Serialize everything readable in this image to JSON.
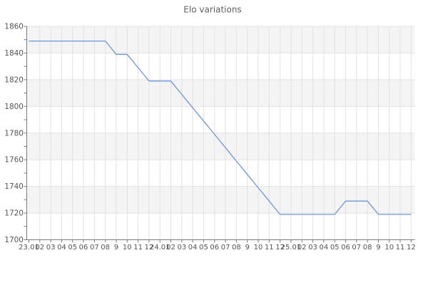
{
  "chart_data": {
    "type": "line",
    "title": "Elo variations",
    "legend": "none",
    "grid": "on",
    "ylim": [
      1700,
      1860
    ],
    "y_major_step": 20,
    "y_minor_step": 10,
    "y_tick_labels": [
      "1860",
      "1840",
      "1820",
      "1800",
      "1780",
      "1760",
      "1740",
      "1720",
      "1700"
    ],
    "x_tick_labels": [
      "23.01",
      "02",
      "03",
      "04",
      "05",
      "06",
      "07",
      "08",
      "9",
      "10",
      "11",
      "12",
      "24.01",
      "02",
      "03",
      "04",
      "05",
      "06",
      "07",
      "08",
      "9",
      "10",
      "11",
      "12",
      "25.01",
      "02",
      "03",
      "04",
      "05",
      "06",
      "07",
      "08",
      "9",
      "10",
      "11",
      "12"
    ],
    "series": [
      {
        "name": "Elo",
        "values": [
          1849,
          1849,
          1849,
          1849,
          1849,
          1849,
          1849,
          1849,
          1839,
          1839,
          1829,
          1819,
          1819,
          1819,
          1809,
          1799,
          1789,
          1779,
          1769,
          1759,
          1749,
          1739,
          1729,
          1719,
          1719,
          1719,
          1719,
          1719,
          1719,
          1729,
          1729,
          1729,
          1719,
          1719,
          1719,
          1719
        ]
      }
    ],
    "colors": {
      "line": "#6d96d8",
      "band": "#f4f4f4",
      "gridline": "#e2e2e2",
      "axis": "#7a7a7a",
      "tick_text": "#545454",
      "title_text": "#606060",
      "background": "#ffffff"
    }
  }
}
